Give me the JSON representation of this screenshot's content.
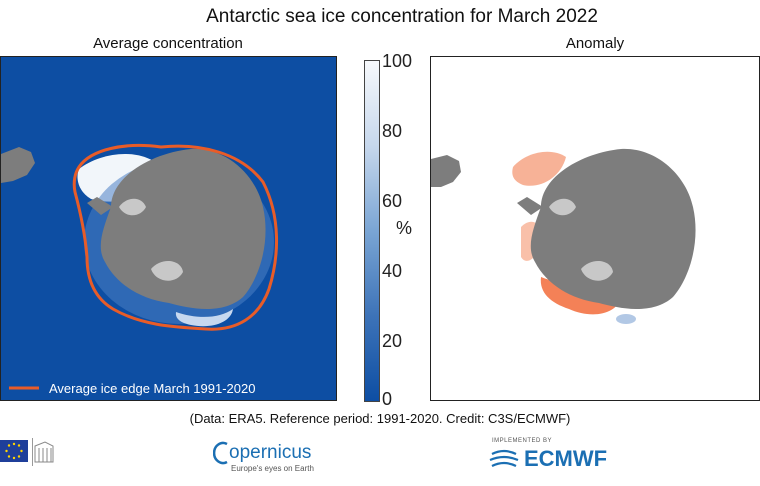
{
  "title": "Antarctic sea ice concentration for March 2022",
  "left_panel": {
    "subtitle": "Average concentration",
    "legend_label": "Average ice edge March 1991-2020"
  },
  "right_panel": {
    "subtitle": "Anomaly"
  },
  "colorbar": {
    "unit": "%",
    "ticks": [
      "100",
      "80",
      "60",
      "40",
      "20",
      "0"
    ],
    "range": [
      0,
      100
    ]
  },
  "caption": "(Data: ERA5.  Reference period: 1991-2020.  Credit: C3S/ECMWF)",
  "logos": {
    "copernicus": {
      "name": "opernicus",
      "tagline": "Europe's eyes on Earth"
    },
    "ecmwf": {
      "tagline": "IMPLEMENTED BY",
      "name": "ECMWF"
    }
  },
  "colors": {
    "ocean_blue": "#0d4ea3",
    "land_gray": "#7d7d7d",
    "ice_edge_orange": "#e85c28",
    "anomaly_red": "#f26b3a",
    "ecmwf_blue": "#1b6fb3"
  }
}
